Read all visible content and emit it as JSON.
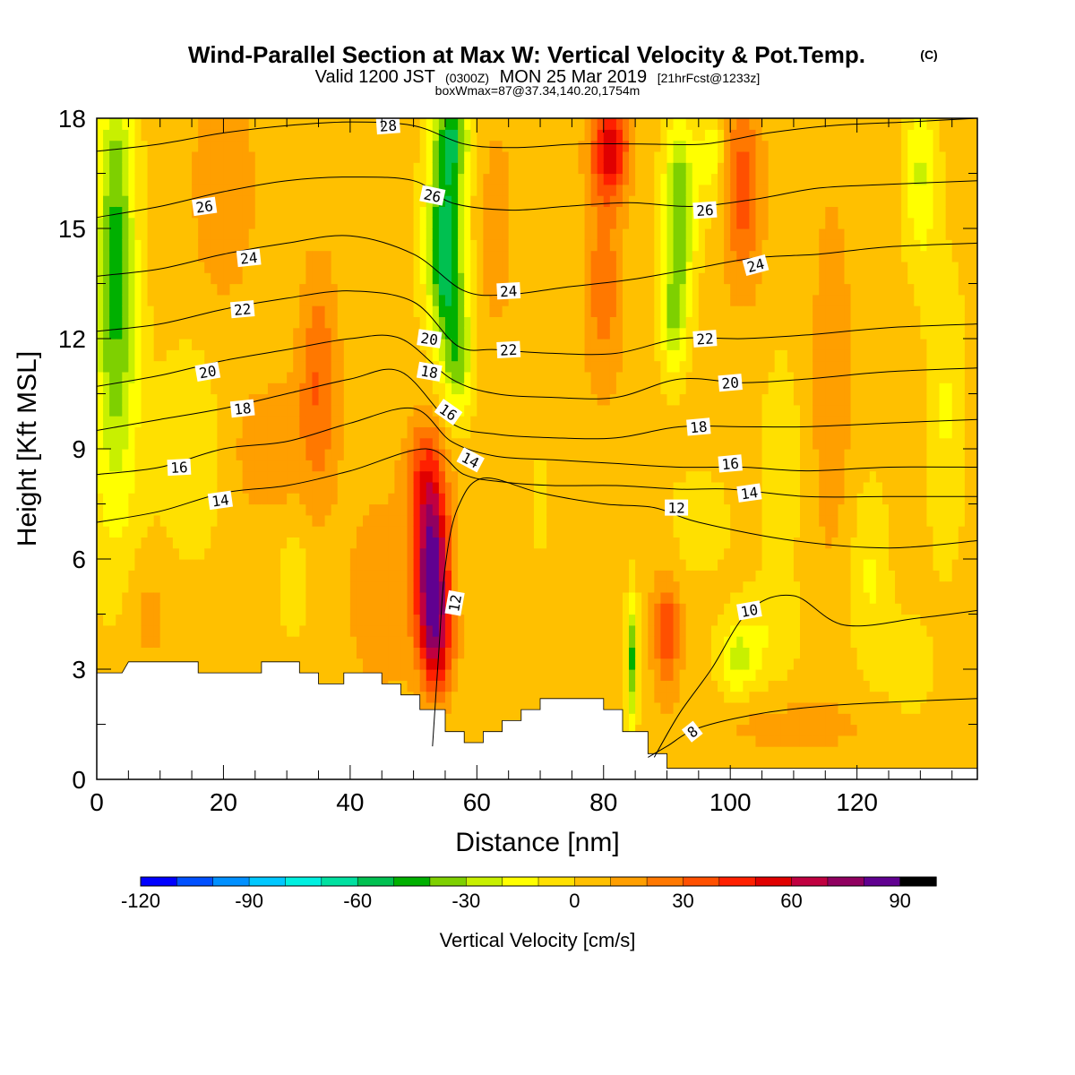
{
  "title": {
    "main": "Wind-Parallel Section at Max W: Vertical Velocity & Pot.Temp.",
    "copyright": "(C)",
    "valid_prefix": "Valid 1200 JST",
    "valid_z": "(0300Z)",
    "valid_date": "MON 25 Mar 2019",
    "fcst": "[21hrFcst@1233z]",
    "box": "boxWmax=87@37.34,140.20,1754m"
  },
  "chart_data": {
    "type": "heatmap",
    "xlabel": "Distance [nm]",
    "ylabel": "Height [Kft MSL]",
    "xlim": [
      0,
      139
    ],
    "ylim": [
      0,
      18
    ],
    "x_ticks": [
      "0",
      "20",
      "40",
      "60",
      "80",
      "100",
      "120"
    ],
    "y_ticks": [
      "0",
      "3",
      "6",
      "9",
      "12",
      "15",
      "18"
    ],
    "colorbar": {
      "label": "Vertical Velocity [cm/s]",
      "min": -120,
      "max": 100,
      "step": 10,
      "tick_labels": [
        "-120",
        "-90",
        "-60",
        "-30",
        "0",
        "30",
        "60",
        "90"
      ],
      "tick_values": [
        -120,
        -90,
        -60,
        -30,
        0,
        30,
        60,
        90
      ],
      "colors": [
        "#0000ff",
        "#0050ff",
        "#0090ff",
        "#00c8ff",
        "#00f0e0",
        "#00e0a0",
        "#00c050",
        "#00b000",
        "#7ed000",
        "#c8f000",
        "#ffff00",
        "#ffe000",
        "#ffc000",
        "#ff9f00",
        "#ff7800",
        "#ff5000",
        "#ff2000",
        "#e00000",
        "#c00040",
        "#900060",
        "#600090"
      ]
    },
    "terrain_kft": [
      [
        0,
        2.9
      ],
      [
        4,
        2.9
      ],
      [
        5,
        3.2
      ],
      [
        16,
        3.2
      ],
      [
        16,
        2.9
      ],
      [
        26,
        2.9
      ],
      [
        26,
        3.2
      ],
      [
        32,
        3.2
      ],
      [
        32,
        2.9
      ],
      [
        35,
        2.9
      ],
      [
        35,
        2.6
      ],
      [
        39,
        2.6
      ],
      [
        39,
        2.9
      ],
      [
        45,
        2.9
      ],
      [
        45,
        2.6
      ],
      [
        48,
        2.6
      ],
      [
        48,
        2.3
      ],
      [
        51,
        2.3
      ],
      [
        51,
        1.9
      ],
      [
        55,
        1.9
      ],
      [
        55,
        1.3
      ],
      [
        58,
        1.3
      ],
      [
        58,
        1.0
      ],
      [
        61,
        1.0
      ],
      [
        61,
        1.3
      ],
      [
        64,
        1.3
      ],
      [
        64,
        1.6
      ],
      [
        67,
        1.6
      ],
      [
        67,
        1.9
      ],
      [
        70,
        1.9
      ],
      [
        70,
        2.2
      ],
      [
        80,
        2.2
      ],
      [
        80,
        1.9
      ],
      [
        83,
        1.9
      ],
      [
        83,
        1.3
      ],
      [
        87,
        1.3
      ],
      [
        87,
        0.7
      ],
      [
        90,
        0.7
      ],
      [
        90,
        0.3
      ],
      [
        139,
        0.3
      ]
    ],
    "w_features": [
      {
        "x": 3,
        "y": 15,
        "sx": 3,
        "sy": 5,
        "w": -40
      },
      {
        "x": 3,
        "y": 10,
        "sx": 4,
        "sy": 5,
        "w": -20
      },
      {
        "x": 15,
        "y": 9,
        "sx": 6,
        "sy": 3,
        "w": -12
      },
      {
        "x": 35,
        "y": 11,
        "sx": 3,
        "sy": 3,
        "w": 25
      },
      {
        "x": 20,
        "y": 16,
        "sx": 5,
        "sy": 3,
        "w": 15
      },
      {
        "x": 27,
        "y": 9,
        "sx": 8,
        "sy": 2,
        "w": 12
      },
      {
        "x": 31,
        "y": 5.5,
        "sx": 2,
        "sy": 1.5,
        "w": -15
      },
      {
        "x": 45,
        "y": 5,
        "sx": 6,
        "sy": 3,
        "w": 12
      },
      {
        "x": 8,
        "y": 4.5,
        "sx": 4,
        "sy": 1.5,
        "w": 10
      },
      {
        "x": 53,
        "y": 5.5,
        "sx": 2.6,
        "sy": 2.2,
        "w": 87
      },
      {
        "x": 52,
        "y": 8.2,
        "sx": 3,
        "sy": 1.6,
        "w": 35
      },
      {
        "x": 54,
        "y": 3.5,
        "sx": 2.5,
        "sy": 1.2,
        "w": 30
      },
      {
        "x": 57,
        "y": 11.5,
        "sx": 2.5,
        "sy": 1.6,
        "w": -35
      },
      {
        "x": 55,
        "y": 14.5,
        "sx": 3,
        "sy": 2.5,
        "w": -65
      },
      {
        "x": 56,
        "y": 17.5,
        "sx": 3,
        "sy": 1.2,
        "w": -45
      },
      {
        "x": 63,
        "y": 15,
        "sx": 3,
        "sy": 3,
        "w": 12
      },
      {
        "x": 70,
        "y": 7.5,
        "sx": 3,
        "sy": 2.5,
        "w": -5
      },
      {
        "x": 81,
        "y": 17.2,
        "sx": 3,
        "sy": 1.3,
        "w": 50
      },
      {
        "x": 80,
        "y": 13.5,
        "sx": 3,
        "sy": 3,
        "w": 22
      },
      {
        "x": 92,
        "y": 15.5,
        "sx": 2.5,
        "sy": 2.5,
        "w": -45
      },
      {
        "x": 91,
        "y": 12.5,
        "sx": 2,
        "sy": 1.5,
        "w": -30
      },
      {
        "x": 97,
        "y": 17,
        "sx": 2,
        "sy": 1.5,
        "w": -20
      },
      {
        "x": 102,
        "y": 16,
        "sx": 3,
        "sy": 2.5,
        "w": 32
      },
      {
        "x": 84.5,
        "y": 3.2,
        "sx": 0.9,
        "sy": 1.8,
        "w": -45
      },
      {
        "x": 90,
        "y": 4,
        "sx": 2.2,
        "sy": 1.5,
        "w": 35
      },
      {
        "x": 95,
        "y": 7,
        "sx": 5,
        "sy": 1.5,
        "w": -10
      },
      {
        "x": 101,
        "y": 3.3,
        "sx": 3,
        "sy": 1,
        "w": -25
      },
      {
        "x": 106,
        "y": 4,
        "sx": 5,
        "sy": 1.5,
        "w": -12
      },
      {
        "x": 108,
        "y": 8.5,
        "sx": 3,
        "sy": 3,
        "w": -12
      },
      {
        "x": 116,
        "y": 11,
        "sx": 3,
        "sy": 5,
        "w": 15
      },
      {
        "x": 122,
        "y": 5.5,
        "sx": 3,
        "sy": 2.5,
        "w": -15
      },
      {
        "x": 130,
        "y": 16.5,
        "sx": 2.5,
        "sy": 2.5,
        "w": -25
      },
      {
        "x": 134,
        "y": 10,
        "sx": 3,
        "sy": 4,
        "w": -15
      },
      {
        "x": 128,
        "y": 3,
        "sx": 4,
        "sy": 1.5,
        "w": -10
      },
      {
        "x": 110,
        "y": 1.5,
        "sx": 15,
        "sy": 0.8,
        "w": 10
      }
    ],
    "theta_contours": [
      {
        "label": "8",
        "pts": [
          [
            87,
            0.6
          ],
          [
            90,
            0.9
          ],
          [
            95,
            1.4
          ],
          [
            105,
            1.8
          ],
          [
            115,
            2.0
          ],
          [
            125,
            2.1
          ],
          [
            139,
            2.2
          ]
        ],
        "label_at": [
          94,
          1.3
        ],
        "angle": -38
      },
      {
        "label": "10",
        "pts": [
          [
            88,
            0.6
          ],
          [
            92,
            1.8
          ],
          [
            97,
            3.0
          ],
          [
            103,
            4.6
          ],
          [
            110,
            5.0
          ],
          [
            118,
            4.2
          ],
          [
            130,
            4.4
          ],
          [
            139,
            4.6
          ]
        ],
        "label_at": [
          103,
          4.6
        ],
        "angle": -10
      },
      {
        "label": "12",
        "pts": [
          [
            53,
            0.9
          ],
          [
            54,
            3.5
          ],
          [
            55,
            5.8
          ],
          [
            57,
            7.4
          ],
          [
            61,
            8.2
          ],
          [
            70,
            7.8
          ],
          [
            80,
            7.5
          ],
          [
            88,
            7.4
          ],
          [
            95,
            7.0
          ],
          [
            110,
            6.5
          ],
          [
            125,
            6.3
          ],
          [
            139,
            6.5
          ]
        ],
        "label_at": [
          56.5,
          4.8
        ],
        "angle": -80
      },
      {
        "label": "14",
        "pts": [
          [
            0,
            7.0
          ],
          [
            10,
            7.3
          ],
          [
            20,
            7.8
          ],
          [
            30,
            8.0
          ],
          [
            40,
            8.4
          ],
          [
            52,
            9.0
          ],
          [
            58,
            8.3
          ],
          [
            64,
            8.1
          ],
          [
            72,
            8.0
          ],
          [
            82,
            8.0
          ],
          [
            92,
            7.9
          ],
          [
            100,
            7.9
          ],
          [
            112,
            7.7
          ],
          [
            125,
            7.7
          ],
          [
            139,
            7.7
          ]
        ],
        "label_at": [
          103,
          7.8
        ],
        "angle": -8
      },
      {
        "label": "16",
        "pts": [
          [
            0,
            8.3
          ],
          [
            10,
            8.5
          ],
          [
            20,
            9.0
          ],
          [
            30,
            9.2
          ],
          [
            40,
            9.7
          ],
          [
            50,
            10.1
          ],
          [
            56,
            9.2
          ],
          [
            63,
            8.8
          ],
          [
            72,
            8.7
          ],
          [
            82,
            8.6
          ],
          [
            92,
            8.5
          ],
          [
            102,
            8.5
          ],
          [
            112,
            8.4
          ],
          [
            125,
            8.5
          ],
          [
            139,
            8.5
          ]
        ],
        "label_at": [
          100,
          8.6
        ],
        "angle": -5
      },
      {
        "label": "18",
        "pts": [
          [
            0,
            9.5
          ],
          [
            10,
            9.8
          ],
          [
            20,
            10.1
          ],
          [
            30,
            10.5
          ],
          [
            40,
            10.9
          ],
          [
            48,
            11.1
          ],
          [
            56,
            9.7
          ],
          [
            63,
            9.4
          ],
          [
            72,
            9.3
          ],
          [
            82,
            9.3
          ],
          [
            92,
            9.6
          ],
          [
            102,
            9.6
          ],
          [
            112,
            9.6
          ],
          [
            125,
            9.7
          ],
          [
            139,
            9.8
          ]
        ],
        "label_at": [
          95,
          9.6
        ],
        "angle": -5
      },
      {
        "label": "20",
        "pts": [
          [
            0,
            10.7
          ],
          [
            10,
            11.0
          ],
          [
            20,
            11.4
          ],
          [
            30,
            11.7
          ],
          [
            40,
            12.0
          ],
          [
            48,
            12.0
          ],
          [
            56,
            10.9
          ],
          [
            63,
            10.5
          ],
          [
            72,
            10.4
          ],
          [
            82,
            10.4
          ],
          [
            92,
            10.9
          ],
          [
            102,
            10.8
          ],
          [
            112,
            10.9
          ],
          [
            125,
            11.1
          ],
          [
            139,
            11.2
          ]
        ],
        "label_at": [
          100,
          10.8
        ],
        "angle": -5
      },
      {
        "label": "22",
        "pts": [
          [
            0,
            12.2
          ],
          [
            10,
            12.4
          ],
          [
            20,
            12.8
          ],
          [
            30,
            13.1
          ],
          [
            40,
            13.3
          ],
          [
            50,
            13.0
          ],
          [
            57,
            11.8
          ],
          [
            63,
            11.7
          ],
          [
            72,
            11.6
          ],
          [
            82,
            11.6
          ],
          [
            92,
            12.0
          ],
          [
            102,
            12.0
          ],
          [
            112,
            12.1
          ],
          [
            125,
            12.3
          ],
          [
            139,
            12.4
          ]
        ],
        "label_at": [
          96,
          12.0
        ],
        "angle": -4
      },
      {
        "label": "24",
        "pts": [
          [
            0,
            13.7
          ],
          [
            10,
            13.9
          ],
          [
            20,
            14.3
          ],
          [
            30,
            14.6
          ],
          [
            40,
            14.8
          ],
          [
            50,
            14.3
          ],
          [
            58,
            13.3
          ],
          [
            65,
            13.2
          ],
          [
            74,
            13.4
          ],
          [
            84,
            13.6
          ],
          [
            94,
            13.9
          ],
          [
            104,
            14.2
          ],
          [
            114,
            14.3
          ],
          [
            125,
            14.5
          ],
          [
            139,
            14.6
          ]
        ],
        "label_at": [
          104,
          14.0
        ],
        "angle": -15
      },
      {
        "label": "26",
        "pts": [
          [
            0,
            15.3
          ],
          [
            10,
            15.6
          ],
          [
            20,
            16.0
          ],
          [
            30,
            16.3
          ],
          [
            40,
            16.4
          ],
          [
            50,
            16.3
          ],
          [
            56,
            15.7
          ],
          [
            65,
            15.5
          ],
          [
            74,
            15.6
          ],
          [
            84,
            15.7
          ],
          [
            94,
            15.6
          ],
          [
            104,
            15.8
          ],
          [
            114,
            16.1
          ],
          [
            125,
            16.2
          ],
          [
            139,
            16.3
          ]
        ],
        "label_at": [
          96,
          15.5
        ],
        "angle": -4
      },
      {
        "label": "28",
        "pts": [
          [
            0,
            17.1
          ],
          [
            10,
            17.3
          ],
          [
            20,
            17.6
          ],
          [
            30,
            17.8
          ],
          [
            40,
            17.9
          ],
          [
            50,
            17.8
          ],
          [
            58,
            17.3
          ],
          [
            66,
            17.2
          ],
          [
            76,
            17.3
          ],
          [
            86,
            17.3
          ],
          [
            96,
            17.3
          ],
          [
            106,
            17.6
          ],
          [
            116,
            17.8
          ],
          [
            128,
            17.9
          ],
          [
            139,
            18.0
          ]
        ],
        "label_at": [
          46,
          17.8
        ],
        "angle": -4
      }
    ],
    "theta_label_extra": [
      {
        "label": "26",
        "at": [
          53,
          15.9
        ],
        "angle": 12
      },
      {
        "label": "26",
        "at": [
          17,
          15.6
        ],
        "angle": -8
      },
      {
        "label": "24",
        "at": [
          24,
          14.2
        ],
        "angle": -6
      },
      {
        "label": "24",
        "at": [
          65,
          13.3
        ],
        "angle": -3
      },
      {
        "label": "22",
        "at": [
          23,
          12.8
        ],
        "angle": -5
      },
      {
        "label": "22",
        "at": [
          65,
          11.7
        ],
        "angle": -3
      },
      {
        "label": "20",
        "at": [
          52.5,
          12.0
        ],
        "angle": 8
      },
      {
        "label": "20",
        "at": [
          17.5,
          11.1
        ],
        "angle": -10
      },
      {
        "label": "18",
        "at": [
          52.5,
          11.1
        ],
        "angle": 10
      },
      {
        "label": "18",
        "at": [
          23,
          10.1
        ],
        "angle": -6
      },
      {
        "label": "16",
        "at": [
          55.5,
          10.0
        ],
        "angle": 35
      },
      {
        "label": "16",
        "at": [
          13,
          8.5
        ],
        "angle": -3
      },
      {
        "label": "14",
        "at": [
          59,
          8.7
        ],
        "angle": 28
      },
      {
        "label": "14",
        "at": [
          19.5,
          7.6
        ],
        "angle": -8
      },
      {
        "label": "12",
        "at": [
          91.5,
          7.4
        ],
        "angle": 0
      }
    ]
  }
}
